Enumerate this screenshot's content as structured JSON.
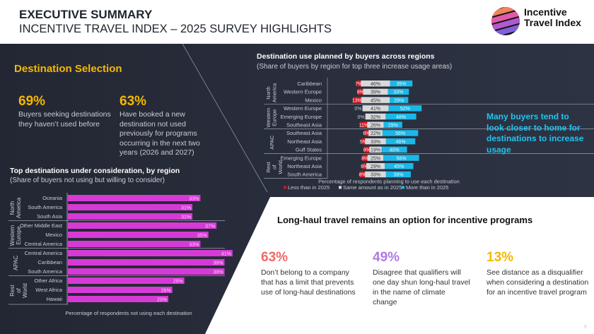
{
  "header": {
    "title": "EXECUTIVE SUMMARY",
    "subtitle": "INCENTIVE TRAVEL INDEX – 2025 SURVEY HIGHLIGHTS",
    "logo_text_line1": "Incentive",
    "logo_text_line2": "Travel Index"
  },
  "section": {
    "title": "Destination Selection",
    "stats": [
      {
        "value": "69%",
        "text": "Buyers seeking destinations they haven’t used before"
      },
      {
        "value": "63%",
        "text": "Have booked a new destination not used previously for programs occurring in the next two years (2026 and 2027)"
      }
    ]
  },
  "callout": "Many buyers tend to look closer to home for destinations to increase usage",
  "longhaul": {
    "title": "Long-haul travel remains an option for incentive programs",
    "stats": [
      {
        "value": "63%",
        "text": "Don’t belong to a company that has a limit that prevents use of long-haul destinations",
        "color": "#f26868"
      },
      {
        "value": "49%",
        "text": "Disagree that qualifiers will one day shun long-haul travel in the name of climate change",
        "color": "#b07be0"
      },
      {
        "value": "13%",
        "text": "See distance as a disqualifier when considering a destination for an incentive travel program",
        "color": "#f5b800"
      }
    ]
  },
  "page_number": "8",
  "colors": {
    "dark": "#242835",
    "accent_yellow": "#f5b800",
    "magenta": "#d63ad6",
    "red": "#d7151f",
    "gray": "#d9d9d9",
    "cyan": "#1ab8e8"
  },
  "chart_data": [
    {
      "type": "bar",
      "orientation": "horizontal",
      "title": "Top destinations under consideration, by region",
      "subtitle": "(Share of buyers not using but willing to consider)",
      "xlabel": "Percentage of respondents not using each destination",
      "groups": [
        {
          "region": "North America",
          "categories": [
            "Oceania",
            "South America",
            "South Asia"
          ],
          "values": [
            33,
            31,
            31
          ]
        },
        {
          "region": "Western Europe",
          "categories": [
            "Other Middle East",
            "Mexico",
            "Central America"
          ],
          "values": [
            37,
            35,
            33
          ]
        },
        {
          "region": "APAC",
          "categories": [
            "Central America",
            "Caribbean",
            "South America"
          ],
          "values": [
            41,
            39,
            39
          ]
        },
        {
          "region": "Rest of World",
          "categories": [
            "Other Africa",
            "West Africa",
            "Hawaii"
          ],
          "values": [
            29,
            26,
            25
          ]
        }
      ]
    },
    {
      "type": "bar",
      "orientation": "horizontal",
      "stacked": true,
      "title": "Destination use planned by buyers across regions",
      "subtitle": "(Share of buyers by region for top three increase usage areas)",
      "xlabel": "Percentage of respondents planning to use each destination",
      "legend": [
        "Less than in 2025",
        "Same amount as in 2025",
        "More than in 2025"
      ],
      "legend_position": "bottom",
      "groups": [
        {
          "region": "North America",
          "categories": [
            "Caribbean",
            "Western Europe",
            "Mexico"
          ],
          "less": [
            7,
            8,
            13
          ],
          "same": [
            46,
            39,
            45
          ],
          "more": [
            35,
            33,
            29
          ]
        },
        {
          "region": "Western Europe",
          "categories": [
            "Western Europe",
            "Emerging Europe",
            "Southeast Asia"
          ],
          "less": [
            0,
            0,
            11
          ],
          "same": [
            41,
            32,
            26
          ],
          "more": [
            52,
            48,
            29
          ]
        },
        {
          "region": "APAC",
          "categories": [
            "Southeast Asia",
            "Northeast Asia",
            "Gulf States"
          ],
          "less": [
            6,
            5,
            8
          ],
          "same": [
            22,
            33,
            19
          ],
          "more": [
            56,
            46,
            40
          ]
        },
        {
          "region": "Rest of World",
          "categories": [
            "Emerging Europe",
            "Northeast Asia",
            "South America"
          ],
          "less": [
            8,
            6,
            8
          ],
          "same": [
            25,
            29,
            33
          ],
          "more": [
            56,
            45,
            39
          ]
        }
      ]
    }
  ]
}
